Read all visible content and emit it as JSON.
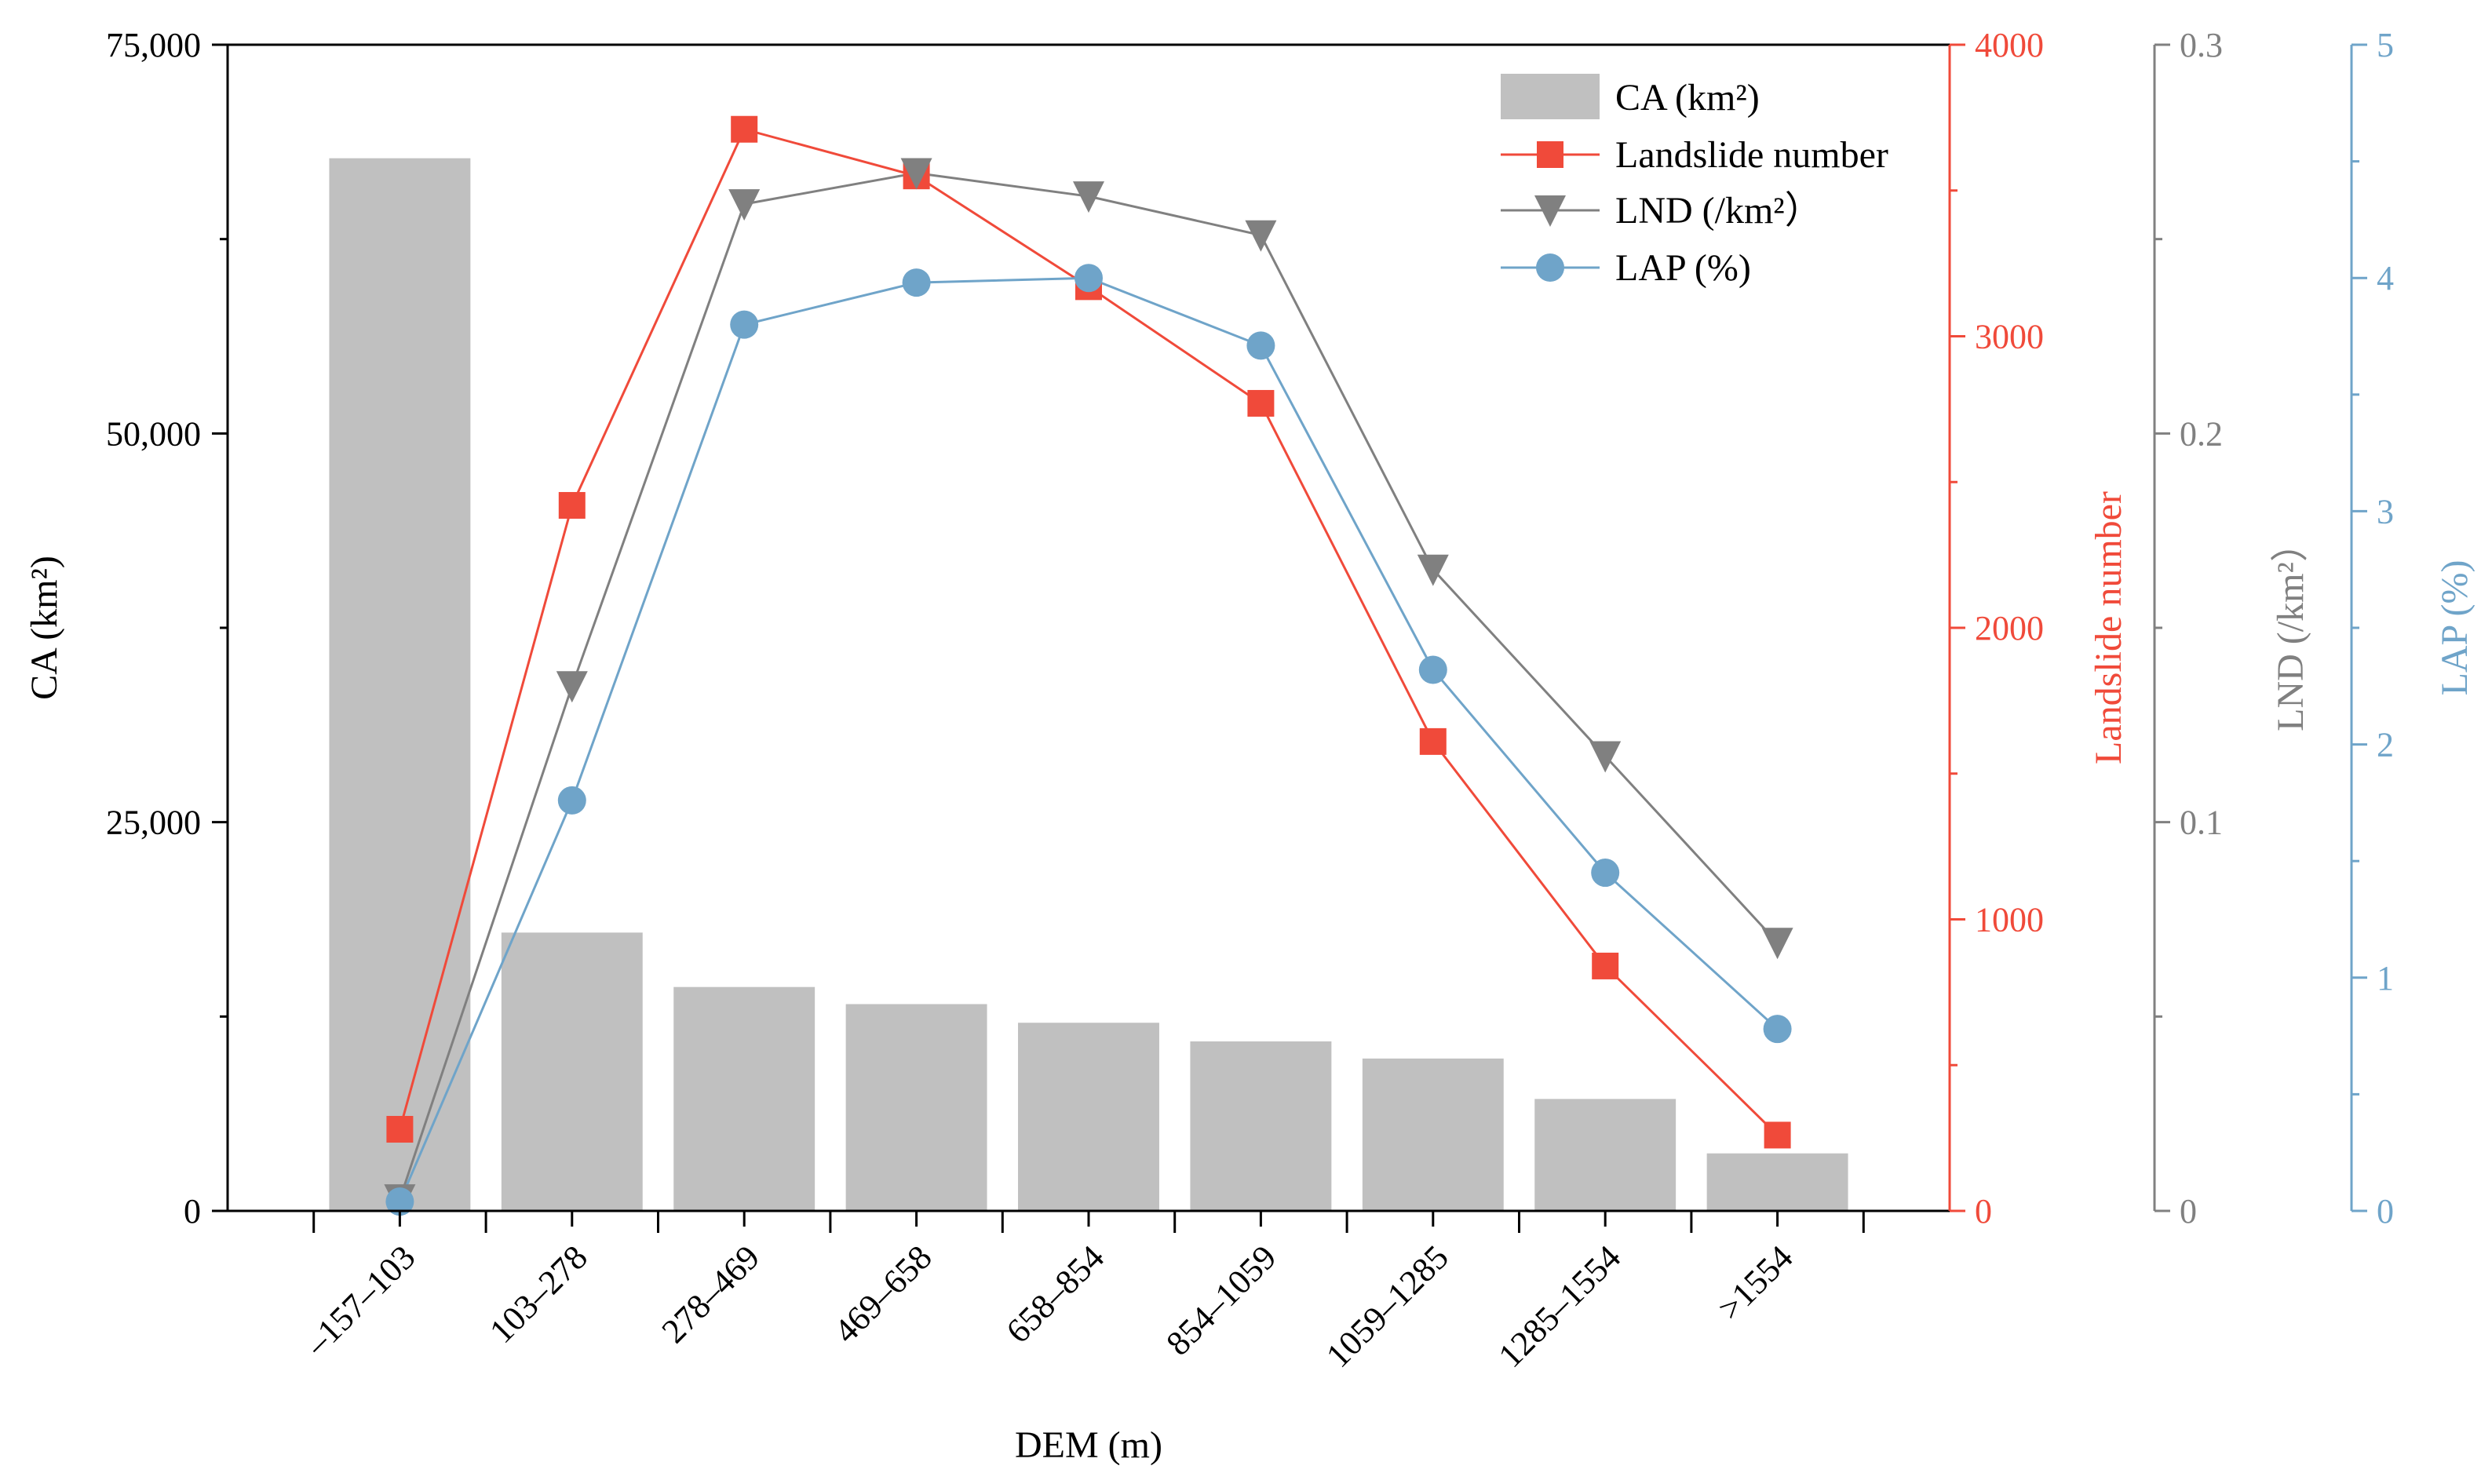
{
  "chart_data": {
    "type": "bar",
    "xlabel": "DEM (m)",
    "categories": [
      "–157–103",
      "103–278",
      "278–469",
      "469–658",
      "658–854",
      "854–1059",
      "1059–1285",
      "1285–1554",
      ">1554"
    ],
    "series": [
      {
        "name": "CA (km²)",
        "type": "bar",
        "axis": "y1",
        "color": "#c0c0c0",
        "values": [
          67700,
          17900,
          14400,
          13300,
          12100,
          10900,
          9800,
          7200,
          3700
        ]
      },
      {
        "name": "Landslide number",
        "type": "line",
        "marker": "square",
        "axis": "y2",
        "color": "#f04a3a",
        "values": [
          280,
          2420,
          3710,
          3550,
          3170,
          2770,
          1610,
          840,
          260
        ]
      },
      {
        "name": "LND (/km²）",
        "type": "line",
        "marker": "triangle-down",
        "axis": "y3",
        "color": "#808080",
        "values": [
          0.003,
          0.135,
          0.259,
          0.267,
          0.261,
          0.251,
          0.165,
          0.117,
          0.069
        ]
      },
      {
        "name": "LAP (%)",
        "type": "line",
        "marker": "circle",
        "axis": "y4",
        "color": "#6fa4c9",
        "values": [
          0.04,
          1.76,
          3.8,
          3.98,
          4.0,
          3.71,
          2.32,
          1.45,
          0.78
        ]
      }
    ],
    "axes": {
      "y1": {
        "label": "CA (km²)",
        "min": 0,
        "max": 75000,
        "ticks": [
          0,
          25000,
          50000,
          75000
        ],
        "tick_labels": [
          "0",
          "25,000",
          "50,000",
          "75,000"
        ],
        "color": "#000000"
      },
      "y2": {
        "label": "Landslide number",
        "min": 0,
        "max": 4000,
        "ticks": [
          0,
          1000,
          2000,
          3000,
          4000
        ],
        "tick_labels": [
          "0",
          "1000",
          "2000",
          "3000",
          "4000"
        ],
        "color": "#f04a3a"
      },
      "y3": {
        "label": "LND (/km²）",
        "min": 0,
        "max": 0.3,
        "ticks": [
          0,
          0.1,
          0.2,
          0.3
        ],
        "tick_labels": [
          "0",
          "0.1",
          "0.2",
          "0.3"
        ],
        "color": "#808080"
      },
      "y4": {
        "label": "LAP (%)",
        "min": 0,
        "max": 5,
        "ticks": [
          0,
          1,
          2,
          3,
          4,
          5
        ],
        "tick_labels": [
          "0",
          "1",
          "2",
          "3",
          "4",
          "5"
        ],
        "color": "#6fa4c9"
      }
    },
    "legend_position": "top-right",
    "grid": false
  }
}
